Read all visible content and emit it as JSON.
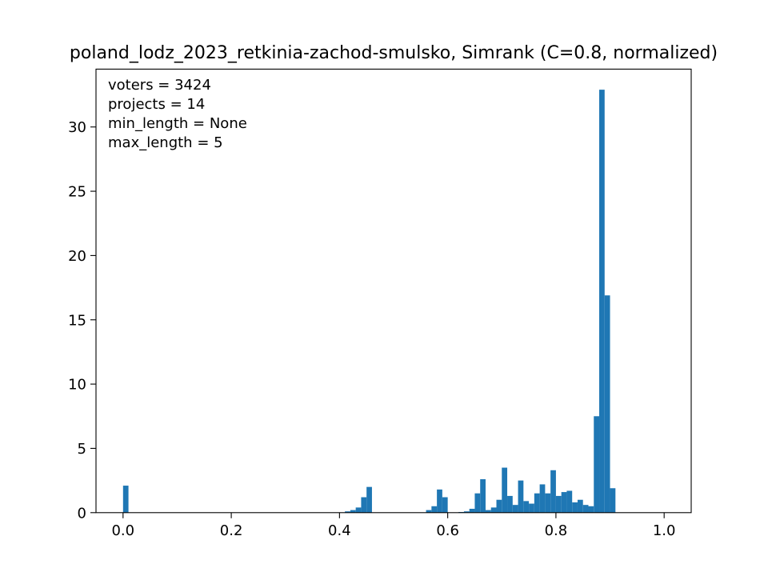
{
  "chart_data": {
    "type": "bar",
    "title": "poland_lodz_2023_retkinia-zachod-smulsko, Simrank (C=0.8, normalized)",
    "xlabel": "",
    "ylabel": "",
    "xlim": [
      -0.05,
      1.05
    ],
    "ylim": [
      0,
      34.5
    ],
    "bin_width": 0.01,
    "grid": false,
    "xticks": [
      0.0,
      0.2,
      0.4,
      0.6,
      0.8,
      1.0
    ],
    "xtick_labels": [
      "0.0",
      "0.2",
      "0.4",
      "0.6",
      "0.8",
      "1.0"
    ],
    "yticks": [
      0,
      5,
      10,
      15,
      20,
      25,
      30
    ],
    "ytick_labels": [
      "0",
      "5",
      "10",
      "15",
      "20",
      "25",
      "30"
    ],
    "annotations": [
      "voters = 3424",
      "projects = 14",
      "min_length = None",
      "max_length = 5"
    ],
    "color": "#1f77b4",
    "bins": [
      {
        "x": 0.0,
        "height": 2.1
      },
      {
        "x": 0.41,
        "height": 0.1
      },
      {
        "x": 0.42,
        "height": 0.2
      },
      {
        "x": 0.43,
        "height": 0.4
      },
      {
        "x": 0.44,
        "height": 1.2
      },
      {
        "x": 0.45,
        "height": 2.0
      },
      {
        "x": 0.56,
        "height": 0.2
      },
      {
        "x": 0.57,
        "height": 0.5
      },
      {
        "x": 0.58,
        "height": 1.8
      },
      {
        "x": 0.59,
        "height": 1.2
      },
      {
        "x": 0.62,
        "height": 0.05
      },
      {
        "x": 0.63,
        "height": 0.1
      },
      {
        "x": 0.64,
        "height": 0.3
      },
      {
        "x": 0.65,
        "height": 1.5
      },
      {
        "x": 0.66,
        "height": 2.6
      },
      {
        "x": 0.67,
        "height": 0.2
      },
      {
        "x": 0.68,
        "height": 0.4
      },
      {
        "x": 0.69,
        "height": 1.0
      },
      {
        "x": 0.7,
        "height": 3.5
      },
      {
        "x": 0.71,
        "height": 1.3
      },
      {
        "x": 0.72,
        "height": 0.6
      },
      {
        "x": 0.73,
        "height": 2.5
      },
      {
        "x": 0.74,
        "height": 0.9
      },
      {
        "x": 0.75,
        "height": 0.7
      },
      {
        "x": 0.76,
        "height": 1.5
      },
      {
        "x": 0.77,
        "height": 2.2
      },
      {
        "x": 0.78,
        "height": 1.5
      },
      {
        "x": 0.79,
        "height": 3.3
      },
      {
        "x": 0.8,
        "height": 1.3
      },
      {
        "x": 0.81,
        "height": 1.6
      },
      {
        "x": 0.82,
        "height": 1.7
      },
      {
        "x": 0.83,
        "height": 0.8
      },
      {
        "x": 0.84,
        "height": 1.0
      },
      {
        "x": 0.85,
        "height": 0.6
      },
      {
        "x": 0.86,
        "height": 0.5
      },
      {
        "x": 0.87,
        "height": 7.5
      },
      {
        "x": 0.88,
        "height": 32.9
      },
      {
        "x": 0.89,
        "height": 16.9
      },
      {
        "x": 0.9,
        "height": 1.9
      }
    ]
  }
}
